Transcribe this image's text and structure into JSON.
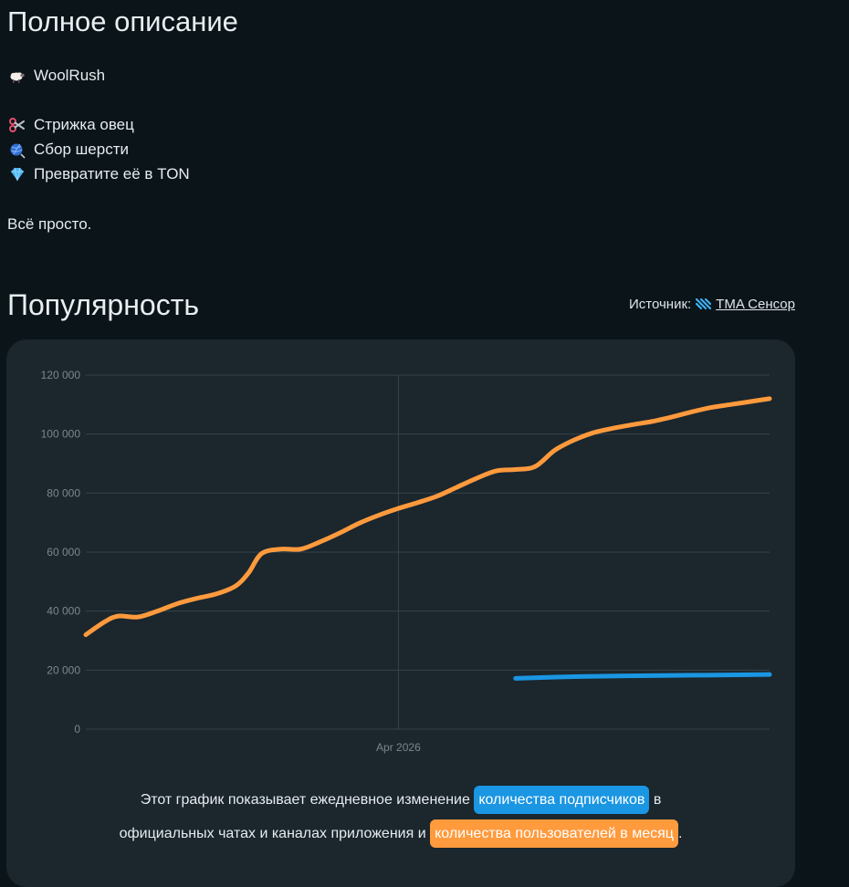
{
  "description": {
    "title": "Полное описание",
    "app_name": "WoolRush",
    "features": [
      "Стрижка овец",
      "Сбор шерсти",
      "Превратите её в TON"
    ],
    "footer": "Всё просто."
  },
  "popularity": {
    "title": "Популярность",
    "source_label": "Источник:",
    "source_link": "TMA Сенсор"
  },
  "caption": {
    "part1": "Этот график показывает ежедневное изменение",
    "subscribers": "количества подписчиков",
    "part2": "в",
    "part3": "официальных чатах и каналах приложения и",
    "monthly_users": "количества пользователей в месяц",
    "part4": "."
  },
  "colors": {
    "monthly_users": "#ff9a3d",
    "subscribers": "#1a96e3",
    "background": "#0b1419",
    "card": "#1b262d"
  },
  "chart_data": {
    "type": "line",
    "ylim": [
      0,
      120000
    ],
    "yticks": [
      0,
      20000,
      40000,
      60000,
      80000,
      100000,
      120000
    ],
    "ytick_labels": [
      "0",
      "20 000",
      "40 000",
      "60 000",
      "80 000",
      "100 000",
      "120 000"
    ],
    "xtick_labels": [
      "Apr 2026"
    ],
    "grid": true,
    "series": [
      {
        "name": "количества пользователей в месяц",
        "color": "#ff9a3d",
        "points": [
          [
            0,
            32000
          ],
          [
            3,
            36500
          ],
          [
            5,
            38300
          ],
          [
            8,
            38000
          ],
          [
            11,
            40000
          ],
          [
            14,
            42500
          ],
          [
            17,
            44300
          ],
          [
            20,
            45800
          ],
          [
            23,
            48500
          ],
          [
            25,
            53000
          ],
          [
            27,
            59500
          ],
          [
            30,
            61000
          ],
          [
            33,
            61000
          ],
          [
            36,
            63500
          ],
          [
            39,
            66500
          ],
          [
            42,
            69800
          ],
          [
            45,
            72500
          ],
          [
            48,
            74800
          ],
          [
            51,
            76800
          ],
          [
            54,
            79000
          ],
          [
            57,
            82000
          ],
          [
            60,
            85000
          ],
          [
            63,
            87500
          ],
          [
            66,
            88000
          ],
          [
            69,
            89000
          ],
          [
            72,
            94500
          ],
          [
            75,
            98000
          ],
          [
            78,
            100500
          ],
          [
            81,
            102000
          ],
          [
            84,
            103200
          ],
          [
            87,
            104300
          ],
          [
            90,
            105800
          ],
          [
            93,
            107500
          ],
          [
            96,
            109000
          ],
          [
            99,
            110000
          ],
          [
            102,
            111000
          ],
          [
            105,
            112000
          ]
        ]
      },
      {
        "name": "количества подписчиков",
        "color": "#1a96e3",
        "points": [
          [
            66,
            17200
          ],
          [
            75,
            17800
          ],
          [
            85,
            18100
          ],
          [
            95,
            18300
          ],
          [
            105,
            18500
          ]
        ]
      }
    ],
    "x_range": [
      0,
      105
    ],
    "x_marker": 48
  }
}
